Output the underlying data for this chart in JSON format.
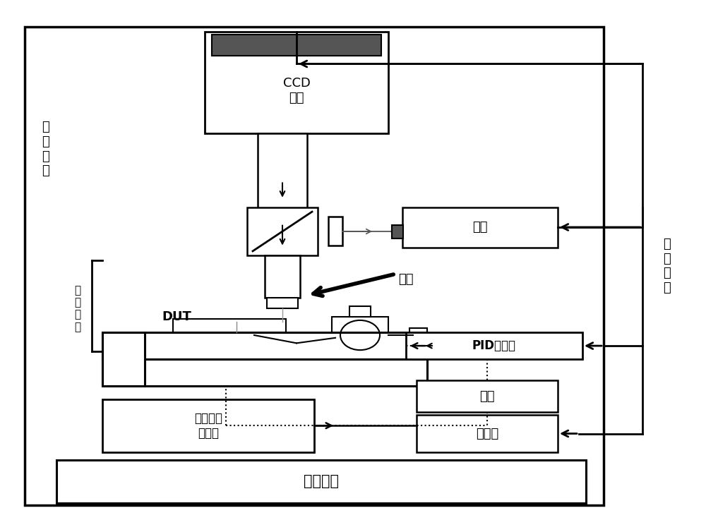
{
  "bg_color": "#ffffff",
  "line_color": "#000000",
  "figsize": [
    10.0,
    7.54
  ],
  "dpi": 100,
  "labels": {
    "ccd": "CCD\n相机",
    "guding": "固\n定\n装\n置",
    "kongwen": "控\n温\n装\n置",
    "kongzhi": "控\n制\n装\n置",
    "guangyuan": "光源",
    "wujing": "物镜",
    "dut": "DUT",
    "pid": "PID控制器",
    "dianyuan": "电源",
    "kongzhiqi": "控制器",
    "sanzhou": "三轴纳米\n位移台",
    "guangxue": "光学平台"
  }
}
